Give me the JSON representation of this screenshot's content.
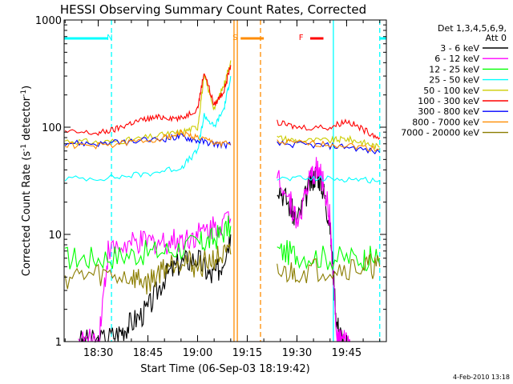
{
  "title": "HESSI Observing Summary Count Rates, Corrected",
  "footer_date": "4-Feb-2010 13:18",
  "legend": {
    "header_line1": "Det 1,3,4,5,6,9,",
    "header_line2": "Att 0",
    "entries": [
      {
        "label": "3 - 6 keV",
        "color": "#000000"
      },
      {
        "label": "6 - 12 keV",
        "color": "#ff00ff"
      },
      {
        "label": "12 - 25 keV",
        "color": "#00ff00"
      },
      {
        "label": "25 - 50 keV",
        "color": "#00ffff"
      },
      {
        "label": "50 - 100 keV",
        "color": "#cccc00"
      },
      {
        "label": "100 - 300 keV",
        "color": "#ff0000"
      },
      {
        "label": "300 - 800 keV",
        "color": "#0000ff"
      },
      {
        "label": "800 - 7000 keV",
        "color": "#ff8c00"
      },
      {
        "label": "7000 - 20000 keV",
        "color": "#8b7d00"
      }
    ]
  },
  "chart_data": {
    "type": "line",
    "title": "HESSI Observing Summary Count Rates, Corrected",
    "xlabel": "Start Time (06-Sep-03 18:19:42)",
    "ylabel_main": "Corrected Count Rate (s",
    "ylabel_sup1": "-1",
    "ylabel_mid": " detector",
    "ylabel_sup2": "-1",
    "ylabel_end": ")",
    "y_scale": "log",
    "ylim": [
      1,
      1000
    ],
    "xlim": [
      "18:19:42",
      "19:57:00"
    ],
    "x_ticks": [
      "18:30",
      "18:45",
      "19:00",
      "19:15",
      "19:30",
      "19:45"
    ],
    "y_ticks": [
      "1",
      "10",
      "100",
      "1000"
    ],
    "markers": [
      {
        "label": "N",
        "color": "#00ffff",
        "time": "18:34",
        "bar_from": "18:19:42",
        "bar_to": "18:33"
      },
      {
        "label": "S",
        "color": "#ff8c00",
        "time": "19:12",
        "bar_from": "19:13",
        "bar_to": "19:20"
      },
      {
        "label": "F",
        "color": "#ff0000",
        "time": "19:32",
        "bar_from": "19:34",
        "bar_to": "19:38"
      }
    ],
    "vertical_lines": [
      {
        "time": "18:34",
        "color": "#00ffff",
        "style": "dashed"
      },
      {
        "time": "19:11",
        "color": "#ff8c00",
        "style": "solid"
      },
      {
        "time": "19:12",
        "color": "#ff8c00",
        "style": "solid"
      },
      {
        "time": "19:19",
        "color": "#ff8c00",
        "style": "dashed"
      },
      {
        "time": "19:41",
        "color": "#00ffff",
        "style": "solid"
      },
      {
        "time": "19:55",
        "color": "#00ffff",
        "style": "dashed"
      }
    ],
    "end_bar": {
      "color": "#00ffff",
      "bar_from": "19:55",
      "bar_to": "19:57"
    },
    "series": [
      {
        "name": "3 - 6 keV",
        "color": "#000000",
        "seg1": [
          [
            "18:24",
            1.0
          ],
          [
            "18:30",
            1.0
          ],
          [
            "18:36",
            1.2
          ],
          [
            "18:40",
            1.5
          ],
          [
            "18:45",
            2.0
          ],
          [
            "18:50",
            4.0
          ],
          [
            "18:55",
            5.5
          ],
          [
            "19:00",
            6.0
          ],
          [
            "19:04",
            4.0
          ],
          [
            "19:07",
            5.0
          ],
          [
            "19:10",
            10.0
          ]
        ],
        "seg2": [
          [
            "19:24",
            30.0
          ],
          [
            "19:28",
            18.0
          ],
          [
            "19:30",
            13.0
          ],
          [
            "19:34",
            30.0
          ],
          [
            "19:36",
            38.0
          ],
          [
            "19:38",
            26.0
          ],
          [
            "19:40",
            12.0
          ],
          [
            "19:42",
            1.5
          ],
          [
            "19:44",
            1.0
          ]
        ]
      },
      {
        "name": "6 - 12 keV",
        "color": "#ff00ff",
        "seg1": [
          [
            "18:24",
            1.0
          ],
          [
            "18:30",
            1.0
          ],
          [
            "18:33",
            7.0
          ],
          [
            "18:40",
            8.0
          ],
          [
            "18:45",
            8.5
          ],
          [
            "18:50",
            8.5
          ],
          [
            "18:55",
            9.0
          ],
          [
            "19:00",
            10.0
          ],
          [
            "19:05",
            12.0
          ],
          [
            "19:10",
            14.0
          ]
        ],
        "seg2": [
          [
            "19:24",
            40.0
          ],
          [
            "19:28",
            20.0
          ],
          [
            "19:30",
            13.0
          ],
          [
            "19:34",
            32.0
          ],
          [
            "19:36",
            42.0
          ],
          [
            "19:38",
            30.0
          ],
          [
            "19:40",
            14.0
          ],
          [
            "19:42",
            1.0
          ],
          [
            "19:44",
            1.0
          ],
          [
            "19:46",
            1.0
          ]
        ]
      },
      {
        "name": "12 - 25 keV",
        "color": "#00ff00",
        "seg1": [
          [
            "18:20",
            6.0
          ],
          [
            "18:30",
            6.0
          ],
          [
            "18:40",
            6.5
          ],
          [
            "18:50",
            7.0
          ],
          [
            "19:00",
            8.0
          ],
          [
            "19:05",
            9.0
          ],
          [
            "19:10",
            12.0
          ]
        ],
        "seg2": [
          [
            "19:24",
            7.0
          ],
          [
            "19:30",
            6.5
          ],
          [
            "19:40",
            6.0
          ],
          [
            "19:50",
            6.0
          ],
          [
            "19:55",
            6.0
          ]
        ]
      },
      {
        "name": "25 - 50 keV",
        "color": "#00ffff",
        "seg1": [
          [
            "18:20",
            33.0
          ],
          [
            "18:35",
            34.0
          ],
          [
            "18:45",
            37.0
          ],
          [
            "18:55",
            42.0
          ],
          [
            "19:00",
            60.0
          ],
          [
            "19:02",
            130.0
          ],
          [
            "19:05",
            100.0
          ],
          [
            "19:08",
            150.0
          ],
          [
            "19:10",
            300.0
          ]
        ],
        "seg2": [
          [
            "19:24",
            33.0
          ],
          [
            "19:35",
            33.0
          ],
          [
            "19:45",
            33.0
          ],
          [
            "19:55",
            32.0
          ]
        ]
      },
      {
        "name": "50 - 100 keV",
        "color": "#cccc00",
        "seg1": [
          [
            "18:20",
            75.0
          ],
          [
            "18:30",
            72.0
          ],
          [
            "18:40",
            76.0
          ],
          [
            "18:50",
            85.0
          ],
          [
            "18:55",
            90.0
          ],
          [
            "19:00",
            100.0
          ],
          [
            "19:02",
            300.0
          ],
          [
            "19:05",
            150.0
          ],
          [
            "19:08",
            250.0
          ],
          [
            "19:10",
            420.0
          ]
        ],
        "seg2": [
          [
            "19:24",
            80.0
          ],
          [
            "19:30",
            75.0
          ],
          [
            "19:40",
            75.0
          ],
          [
            "19:45",
            78.0
          ],
          [
            "19:50",
            72.0
          ],
          [
            "19:55",
            65.0
          ]
        ]
      },
      {
        "name": "100 - 300 keV",
        "color": "#ff0000",
        "seg1": [
          [
            "18:20",
            90.0
          ],
          [
            "18:30",
            88.0
          ],
          [
            "18:35",
            95.0
          ],
          [
            "18:40",
            110.0
          ],
          [
            "18:45",
            120.0
          ],
          [
            "18:50",
            125.0
          ],
          [
            "18:55",
            120.0
          ],
          [
            "19:00",
            150.0
          ],
          [
            "19:02",
            330.0
          ],
          [
            "19:05",
            160.0
          ],
          [
            "19:08",
            220.0
          ],
          [
            "19:10",
            380.0
          ]
        ],
        "seg2": [
          [
            "19:24",
            110.0
          ],
          [
            "19:30",
            100.0
          ],
          [
            "19:40",
            100.0
          ],
          [
            "19:45",
            115.0
          ],
          [
            "19:50",
            95.0
          ],
          [
            "19:55",
            80.0
          ]
        ]
      },
      {
        "name": "300 - 800 keV",
        "color": "#0000ff",
        "seg1": [
          [
            "18:20",
            72.0
          ],
          [
            "18:30",
            70.0
          ],
          [
            "18:40",
            73.0
          ],
          [
            "18:50",
            78.0
          ],
          [
            "18:55",
            82.0
          ],
          [
            "19:00",
            75.0
          ],
          [
            "19:05",
            70.0
          ],
          [
            "19:10",
            68.0
          ]
        ],
        "seg2": [
          [
            "19:24",
            70.0
          ],
          [
            "19:35",
            68.0
          ],
          [
            "19:45",
            66.0
          ],
          [
            "19:55",
            58.0
          ]
        ]
      },
      {
        "name": "800 - 7000 keV",
        "color": "#ff8c00",
        "seg1": [
          [
            "18:20",
            68.0
          ],
          [
            "18:30",
            67.0
          ],
          [
            "18:40",
            72.0
          ],
          [
            "18:50",
            80.0
          ],
          [
            "18:55",
            88.0
          ],
          [
            "19:00",
            80.0
          ],
          [
            "19:05",
            72.0
          ],
          [
            "19:10",
            70.0
          ]
        ],
        "seg2": [
          [
            "19:24",
            72.0
          ],
          [
            "19:35",
            70.0
          ],
          [
            "19:45",
            68.0
          ],
          [
            "19:55",
            62.0
          ]
        ]
      },
      {
        "name": "7000 - 20000 keV",
        "color": "#8b7d00",
        "seg1": [
          [
            "18:20",
            4.0
          ],
          [
            "18:30",
            4.2
          ],
          [
            "18:40",
            4.0
          ],
          [
            "18:45",
            3.5
          ],
          [
            "18:50",
            5.0
          ],
          [
            "18:55",
            6.0
          ],
          [
            "19:00",
            5.0
          ],
          [
            "19:05",
            6.0
          ],
          [
            "19:10",
            6.5
          ]
        ],
        "seg2": [
          [
            "19:24",
            4.2
          ],
          [
            "19:30",
            4.5
          ],
          [
            "19:40",
            4.8
          ],
          [
            "19:50",
            5.0
          ],
          [
            "19:55",
            5.0
          ]
        ]
      }
    ]
  }
}
